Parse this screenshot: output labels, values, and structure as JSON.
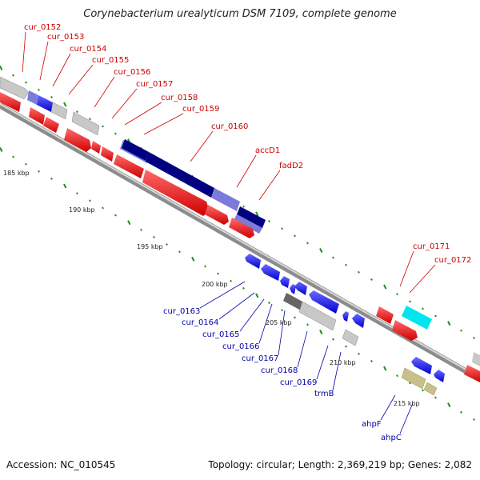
{
  "title": "Corynebacterium urealyticum DSM 7109, complete genome",
  "footer": {
    "accession": "Accession: NC_010545",
    "topology": "Topology: circular; Length: 2,369,219 bp; Genes: 2,082"
  },
  "ruler": [
    "185 kbp",
    "190 kbp",
    "195 kbp",
    "200 kbp",
    "205 kbp",
    "210 kbp",
    "215 kbp"
  ],
  "genes": {
    "cur_0152": "cur_0152",
    "cur_0153": "cur_0153",
    "cur_0154": "cur_0154",
    "cur_0155": "cur_0155",
    "cur_0156": "cur_0156",
    "cur_0157": "cur_0157",
    "cur_0158": "cur_0158",
    "cur_0159": "cur_0159",
    "cur_0160": "cur_0160",
    "accD1": "accD1",
    "fadD2": "fadD2",
    "cur_0171": "cur_0171",
    "cur_0172": "cur_0172",
    "cur_0163": "cur_0163",
    "cur_0164": "cur_0164",
    "cur_0165": "cur_0165",
    "cur_0166": "cur_0166",
    "cur_0167": "cur_0167",
    "cur_0168": "cur_0168",
    "cur_0169": "cur_0169",
    "trmB": "trmB",
    "ahpF": "ahpF",
    "ahpC": "ahpC"
  },
  "colors": {
    "forward_label": "#cc0000",
    "reverse_label": "#0000aa",
    "backbone": "#8c8c8c",
    "tick": "#228b22",
    "forward_cds": "#ff0000",
    "reverse_cds": "#0000ff",
    "dark_blue": "#000080",
    "light_blue": "#7b7bdc",
    "grey": "#c8c8c8",
    "dark_grey": "#666666",
    "cyan": "#00e5ee",
    "khaki": "#c8c08a"
  }
}
